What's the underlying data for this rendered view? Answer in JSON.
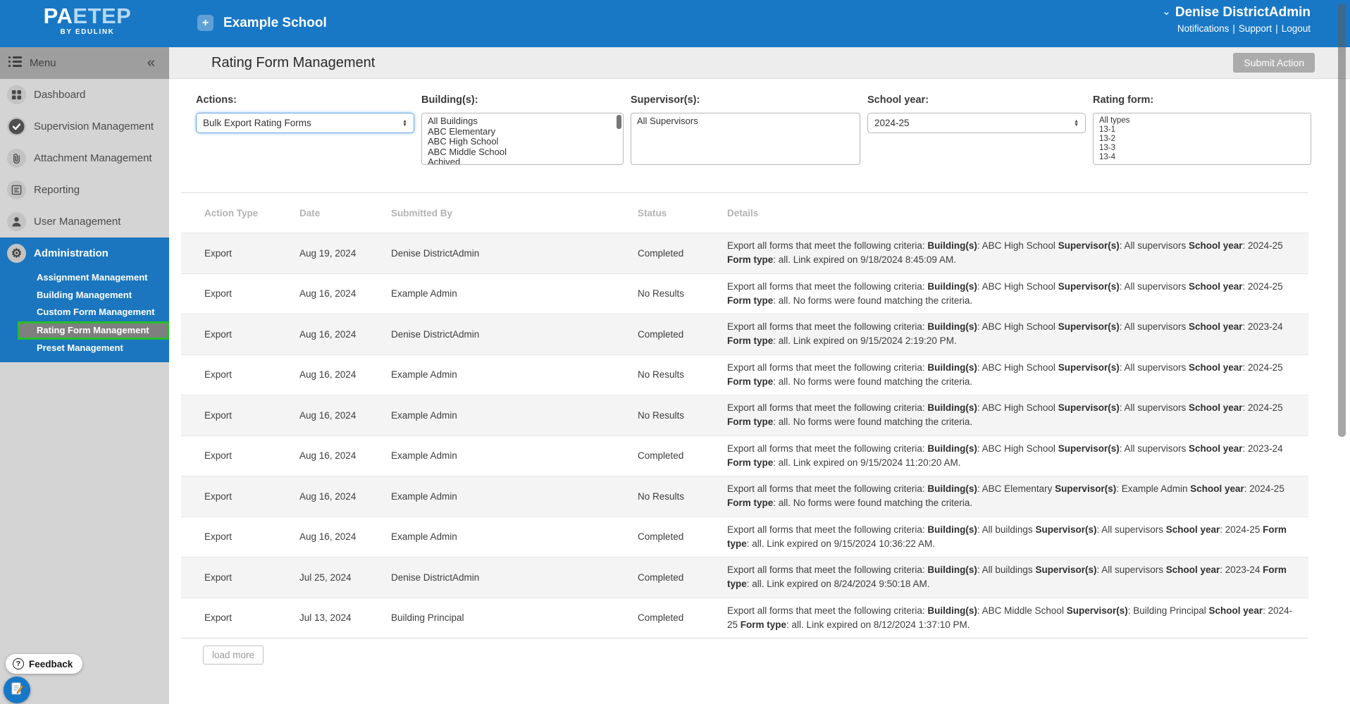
{
  "header": {
    "logo": {
      "brand_pa": "PA",
      "brand_etep": "ETEP",
      "byline": "BY EDULINK"
    },
    "school_button": {
      "plus": "+",
      "label": "Example School"
    },
    "user_menu": {
      "chevron": "⌄",
      "name": "Denise DistrictAdmin"
    },
    "links": [
      "Notifications",
      "Support",
      "Logout"
    ],
    "link_separator": "|"
  },
  "titlebar": {
    "title": "Rating Form Management",
    "submit_button": "Submit Action"
  },
  "sidebar": {
    "menu_label": "Menu",
    "collapse_glyph": "«",
    "items": [
      {
        "label": "Dashboard",
        "icon": "dashboard-icon"
      },
      {
        "label": "Supervision Management",
        "icon": "check-circle-icon"
      },
      {
        "label": "Attachment Management",
        "icon": "paperclip-icon"
      },
      {
        "label": "Reporting",
        "icon": "report-icon"
      },
      {
        "label": "User Management",
        "icon": "user-icon"
      }
    ],
    "admin": {
      "label": "Administration",
      "icon": "gear-icon",
      "subitems": [
        {
          "label": "Assignment Management",
          "active": false
        },
        {
          "label": "Building Management",
          "active": false
        },
        {
          "label": "Custom Form Management",
          "active": false
        },
        {
          "label": "Rating Form Management",
          "active": true
        },
        {
          "label": "Preset Management",
          "active": false
        }
      ]
    }
  },
  "filters": {
    "actions": {
      "label": "Actions:",
      "value": "Bulk Export Rating Forms"
    },
    "buildings": {
      "label": "Building(s):",
      "options": [
        "All Buildings",
        "ABC Elementary",
        "ABC High School",
        "ABC Middle School",
        "Achived"
      ]
    },
    "supervisors": {
      "label": "Supervisor(s):",
      "options": [
        "All Supervisors"
      ]
    },
    "school_year": {
      "label": "School year:",
      "value": "2024-25"
    },
    "rating_form": {
      "label": "Rating form:",
      "options": [
        "All types",
        "13-1",
        "13-2",
        "13-3",
        "13-4"
      ]
    }
  },
  "table": {
    "columns": [
      "Action Type",
      "Date",
      "Submitted By",
      "Status",
      "Details"
    ],
    "rows": [
      {
        "action": "Export",
        "date": "Aug 19, 2024",
        "submitted_by": "Denise DistrictAdmin",
        "status": "Completed",
        "details": [
          [
            "Export all forms that meet the following criteria: ",
            0
          ],
          [
            "Building(s)",
            1
          ],
          [
            ": ABC High School ",
            0
          ],
          [
            "Supervisor(s)",
            1
          ],
          [
            ": All supervisors ",
            0
          ],
          [
            "School year",
            1
          ],
          [
            ": 2024-25 ",
            0
          ],
          [
            "Form type",
            1
          ],
          [
            ": all. Link expired on 9/18/2024 8:45:09 AM.",
            0
          ]
        ]
      },
      {
        "action": "Export",
        "date": "Aug 16, 2024",
        "submitted_by": "Example Admin",
        "status": "No Results",
        "details": [
          [
            "Export all forms that meet the following criteria: ",
            0
          ],
          [
            "Building(s)",
            1
          ],
          [
            ": ABC High School ",
            0
          ],
          [
            "Supervisor(s)",
            1
          ],
          [
            ": All supervisors ",
            0
          ],
          [
            "School year",
            1
          ],
          [
            ": 2024-25 ",
            0
          ],
          [
            "Form type",
            1
          ],
          [
            ": all. No forms were found matching the criteria.",
            0
          ]
        ]
      },
      {
        "action": "Export",
        "date": "Aug 16, 2024",
        "submitted_by": "Denise DistrictAdmin",
        "status": "Completed",
        "details": [
          [
            "Export all forms that meet the following criteria: ",
            0
          ],
          [
            "Building(s)",
            1
          ],
          [
            ": ABC High School ",
            0
          ],
          [
            "Supervisor(s)",
            1
          ],
          [
            ": All supervisors ",
            0
          ],
          [
            "School year",
            1
          ],
          [
            ": 2023-24 ",
            0
          ],
          [
            "Form type",
            1
          ],
          [
            ": all. Link expired on 9/15/2024 2:19:20 PM.",
            0
          ]
        ]
      },
      {
        "action": "Export",
        "date": "Aug 16, 2024",
        "submitted_by": "Example Admin",
        "status": "No Results",
        "details": [
          [
            "Export all forms that meet the following criteria: ",
            0
          ],
          [
            "Building(s)",
            1
          ],
          [
            ": ABC High School ",
            0
          ],
          [
            "Supervisor(s)",
            1
          ],
          [
            ": All supervisors ",
            0
          ],
          [
            "School year",
            1
          ],
          [
            ": 2024-25 ",
            0
          ],
          [
            "Form type",
            1
          ],
          [
            ": all. No forms were found matching the criteria.",
            0
          ]
        ]
      },
      {
        "action": "Export",
        "date": "Aug 16, 2024",
        "submitted_by": "Example Admin",
        "status": "No Results",
        "details": [
          [
            "Export all forms that meet the following criteria: ",
            0
          ],
          [
            "Building(s)",
            1
          ],
          [
            ": ABC High School ",
            0
          ],
          [
            "Supervisor(s)",
            1
          ],
          [
            ": All supervisors ",
            0
          ],
          [
            "School year",
            1
          ],
          [
            ": 2024-25 ",
            0
          ],
          [
            "Form type",
            1
          ],
          [
            ": all. No forms were found matching the criteria.",
            0
          ]
        ]
      },
      {
        "action": "Export",
        "date": "Aug 16, 2024",
        "submitted_by": "Example Admin",
        "status": "Completed",
        "details": [
          [
            "Export all forms that meet the following criteria: ",
            0
          ],
          [
            "Building(s)",
            1
          ],
          [
            ": ABC High School ",
            0
          ],
          [
            "Supervisor(s)",
            1
          ],
          [
            ": All supervisors ",
            0
          ],
          [
            "School year",
            1
          ],
          [
            ": 2023-24 ",
            0
          ],
          [
            "Form type",
            1
          ],
          [
            ": all. Link expired on 9/15/2024 11:20:20 AM.",
            0
          ]
        ]
      },
      {
        "action": "Export",
        "date": "Aug 16, 2024",
        "submitted_by": "Example Admin",
        "status": "No Results",
        "details": [
          [
            "Export all forms that meet the following criteria: ",
            0
          ],
          [
            "Building(s)",
            1
          ],
          [
            ": ABC Elementary ",
            0
          ],
          [
            "Supervisor(s)",
            1
          ],
          [
            ": Example Admin ",
            0
          ],
          [
            "School year",
            1
          ],
          [
            ": 2024-25 ",
            0
          ],
          [
            "Form type",
            1
          ],
          [
            ": all. No forms were found matching the criteria.",
            0
          ]
        ]
      },
      {
        "action": "Export",
        "date": "Aug 16, 2024",
        "submitted_by": "Example Admin",
        "status": "Completed",
        "details": [
          [
            "Export all forms that meet the following criteria: ",
            0
          ],
          [
            "Building(s)",
            1
          ],
          [
            ": All buildings ",
            0
          ],
          [
            "Supervisor(s)",
            1
          ],
          [
            ": All supervisors ",
            0
          ],
          [
            "School year",
            1
          ],
          [
            ": 2024-25 ",
            0
          ],
          [
            "Form type",
            1
          ],
          [
            ": all. Link expired on 9/15/2024 10:36:22 AM.",
            0
          ]
        ]
      },
      {
        "action": "Export",
        "date": "Jul 25, 2024",
        "submitted_by": "Denise DistrictAdmin",
        "status": "Completed",
        "details": [
          [
            "Export all forms that meet the following criteria: ",
            0
          ],
          [
            "Building(s)",
            1
          ],
          [
            ": All buildings ",
            0
          ],
          [
            "Supervisor(s)",
            1
          ],
          [
            ": All supervisors ",
            0
          ],
          [
            "School year",
            1
          ],
          [
            ": 2023-24 ",
            0
          ],
          [
            "Form type",
            1
          ],
          [
            ": all. Link expired on 8/24/2024 9:50:18 AM.",
            0
          ]
        ]
      },
      {
        "action": "Export",
        "date": "Jul 13, 2024",
        "submitted_by": "Building Principal",
        "status": "Completed",
        "details": [
          [
            "Export all forms that meet the following criteria: ",
            0
          ],
          [
            "Building(s)",
            1
          ],
          [
            ": ABC Middle School ",
            0
          ],
          [
            "Supervisor(s)",
            1
          ],
          [
            ": Building Principal ",
            0
          ],
          [
            "School year",
            1
          ],
          [
            ": 2024-25 ",
            0
          ],
          [
            "Form type",
            1
          ],
          [
            ": all. Link expired on 8/12/2024 1:37:10 PM.",
            0
          ]
        ]
      }
    ],
    "load_more": "load more"
  },
  "feedback": {
    "label": "Feedback",
    "icon_glyph": "?"
  },
  "colors": {
    "header_blue": "#1878c6",
    "admin_blue": "#1b76bf",
    "sidebar_grey": "#d4d4d4",
    "menubar_grey": "#9e9e9e",
    "active_highlight_green": "#26bd2d",
    "active_item_grey": "#7f7f7f",
    "titlebar_grey": "#ededed",
    "row_stripe_grey": "#f4f4f4",
    "submit_button_grey": "#ababab"
  }
}
